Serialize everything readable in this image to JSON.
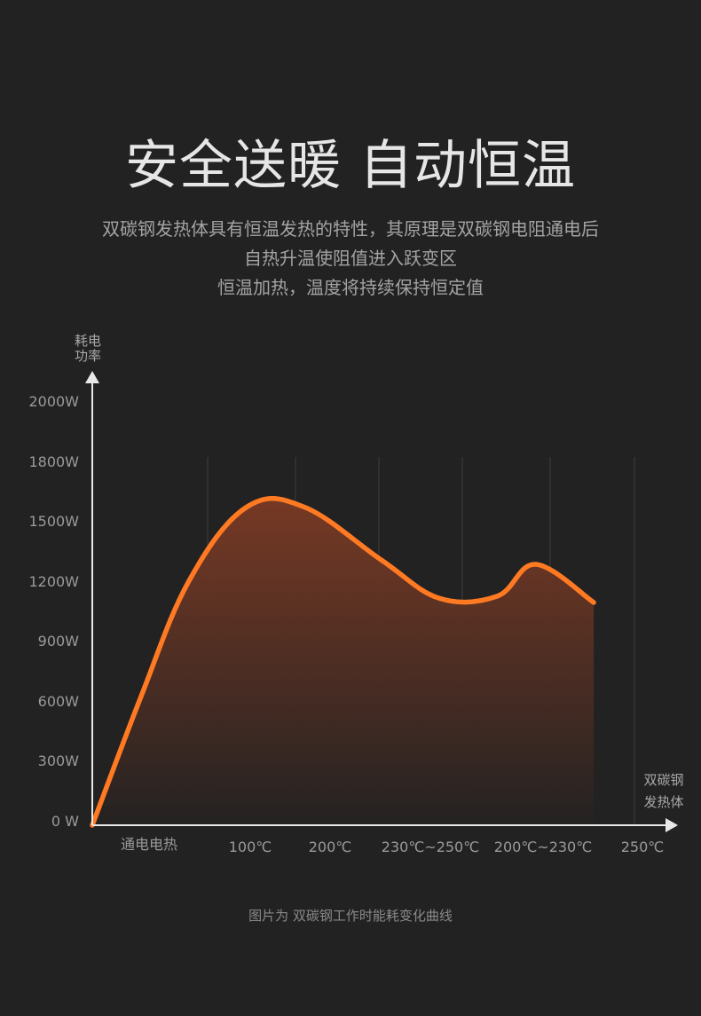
{
  "header": {
    "title": "安全送暖 自动恒温",
    "description": [
      "双碳钢发热体具有恒温发热的特性，其原理是双碳钢电阻通电后",
      "自热升温使阻值进入跃变区",
      "恒温加热，温度将持续保持恒定值"
    ]
  },
  "chart_data": {
    "type": "area",
    "ylabel_lines": [
      "耗电",
      "功率"
    ],
    "xlabel_lines": [
      "双碳钢",
      "发热体"
    ],
    "y_ticks": [
      {
        "value": 0,
        "label": "0 W"
      },
      {
        "value": 300,
        "label": "300W"
      },
      {
        "value": 600,
        "label": "600W"
      },
      {
        "value": 900,
        "label": "900W"
      },
      {
        "value": 1200,
        "label": "1200W"
      },
      {
        "value": 1500,
        "label": "1500W"
      },
      {
        "value": 1800,
        "label": "1800W"
      },
      {
        "value": 2000,
        "label": "2000W"
      }
    ],
    "ylim": [
      0,
      2000
    ],
    "x_labels": [
      "通电电热",
      "100℃",
      "200℃",
      "230℃~250℃",
      "200℃~230℃",
      "250℃"
    ],
    "grid": "vertical",
    "series": [
      {
        "x": [
          0,
          0.5,
          1.0,
          1.6,
          2.2,
          3.0,
          3.6,
          4.2,
          4.6,
          5.2
        ],
        "y": [
          0,
          600,
          1150,
          1500,
          1500,
          1250,
          1070,
          1080,
          1230,
          1050
        ]
      }
    ],
    "colors": {
      "line": "#ff7a22",
      "fill_top": "#7a3a24",
      "fill_bottom": "#242222",
      "axis": "#e8e8e8",
      "grid": "#3a3a3a"
    }
  },
  "footer": {
    "caption": "图片为  双碳钢工作时能耗变化曲线"
  }
}
